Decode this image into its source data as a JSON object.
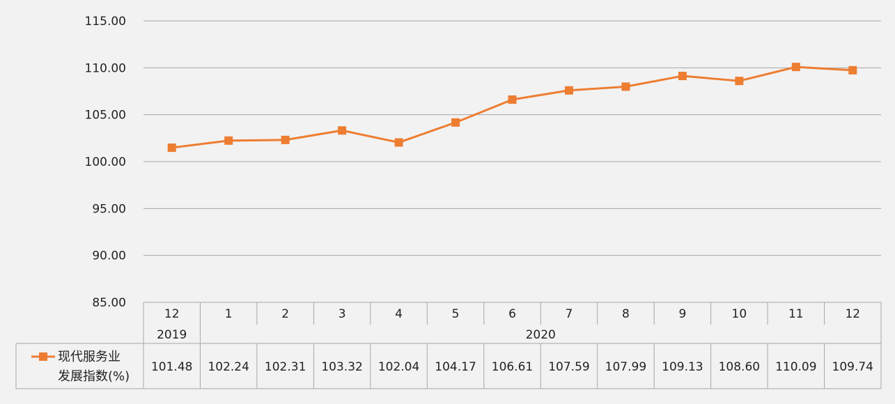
{
  "chart_data": {
    "type": "line",
    "y_ticks": [
      "115.00",
      "110.00",
      "105.00",
      "100.00",
      "95.00",
      "90.00",
      "85.00"
    ],
    "ylim": [
      85,
      115
    ],
    "months": [
      "12",
      "1",
      "2",
      "3",
      "4",
      "5",
      "6",
      "7",
      "8",
      "9",
      "10",
      "11",
      "12"
    ],
    "years": [
      {
        "label": "2019",
        "span": [
          0,
          0
        ]
      },
      {
        "label": "2020",
        "span": [
          1,
          12
        ]
      }
    ],
    "series": [
      {
        "name_line1": "现代服务业",
        "name_line2": "发展指数(%)",
        "color": "#ed7d31",
        "values": [
          101.48,
          102.24,
          102.31,
          103.32,
          102.04,
          104.17,
          106.61,
          107.59,
          107.99,
          109.13,
          108.6,
          110.09,
          109.74
        ],
        "labels": [
          "101.48",
          "102.24",
          "102.31",
          "103.32",
          "102.04",
          "104.17",
          "106.61",
          "107.59",
          "107.99",
          "109.13",
          "108.60",
          "110.09",
          "109.74"
        ]
      }
    ],
    "grid": true,
    "legend": "bottom-left in data table"
  }
}
